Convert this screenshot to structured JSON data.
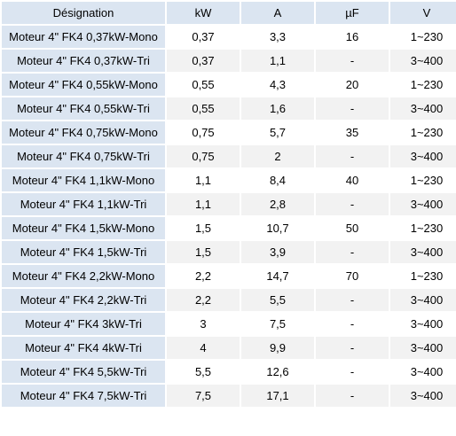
{
  "header": {
    "designation": "Désignation",
    "kw": "kW",
    "a": "A",
    "uf": "µF",
    "v": "V"
  },
  "rows": [
    {
      "name": "Moteur 4\" FK4 0,37kW-Mono",
      "kw": "0,37",
      "a": "3,3",
      "uf": "16",
      "v": "1~230"
    },
    {
      "name": "Moteur 4\" FK4 0,37kW-Tri",
      "kw": "0,37",
      "a": "1,1",
      "uf": "-",
      "v": "3~400"
    },
    {
      "name": "Moteur 4\" FK4 0,55kW-Mono",
      "kw": "0,55",
      "a": "4,3",
      "uf": "20",
      "v": "1~230"
    },
    {
      "name": "Moteur 4\" FK4 0,55kW-Tri",
      "kw": "0,55",
      "a": "1,6",
      "uf": "-",
      "v": "3~400"
    },
    {
      "name": "Moteur 4\" FK4 0,75kW-Mono",
      "kw": "0,75",
      "a": "5,7",
      "uf": "35",
      "v": "1~230"
    },
    {
      "name": "Moteur 4\" FK4 0,75kW-Tri",
      "kw": "0,75",
      "a": "2",
      "uf": "-",
      "v": "3~400"
    },
    {
      "name": "Moteur 4\" FK4 1,1kW-Mono",
      "kw": "1,1",
      "a": "8,4",
      "uf": "40",
      "v": "1~230"
    },
    {
      "name": "Moteur 4\" FK4 1,1kW-Tri",
      "kw": "1,1",
      "a": "2,8",
      "uf": "-",
      "v": "3~400"
    },
    {
      "name": "Moteur 4\" FK4 1,5kW-Mono",
      "kw": "1,5",
      "a": "10,7",
      "uf": "50",
      "v": "1~230"
    },
    {
      "name": "Moteur 4\" FK4 1,5kW-Tri",
      "kw": "1,5",
      "a": "3,9",
      "uf": "-",
      "v": "3~400"
    },
    {
      "name": "Moteur 4\" FK4 2,2kW-Mono",
      "kw": "2,2",
      "a": "14,7",
      "uf": "70",
      "v": "1~230"
    },
    {
      "name": "Moteur 4\" FK4 2,2kW-Tri",
      "kw": "2,2",
      "a": "5,5",
      "uf": "-",
      "v": "3~400"
    },
    {
      "name": "Moteur 4\" FK4 3kW-Tri",
      "kw": "3",
      "a": "7,5",
      "uf": "-",
      "v": "3~400"
    },
    {
      "name": "Moteur 4\" FK4 4kW-Tri",
      "kw": "4",
      "a": "9,9",
      "uf": "-",
      "v": "3~400"
    },
    {
      "name": "Moteur 4\" FK4 5,5kW-Tri",
      "kw": "5,5",
      "a": "12,6",
      "uf": "-",
      "v": "3~400"
    },
    {
      "name": "Moteur 4\" FK4 7,5kW-Tri",
      "kw": "7,5",
      "a": "17,1",
      "uf": "-",
      "v": "3~400"
    }
  ],
  "colors": {
    "header_bg": "#dbe5f1",
    "name_col_bg": "#dbe5f1",
    "row_alt_bg": "#f2f2f2",
    "row_bg": "#ffffff"
  }
}
